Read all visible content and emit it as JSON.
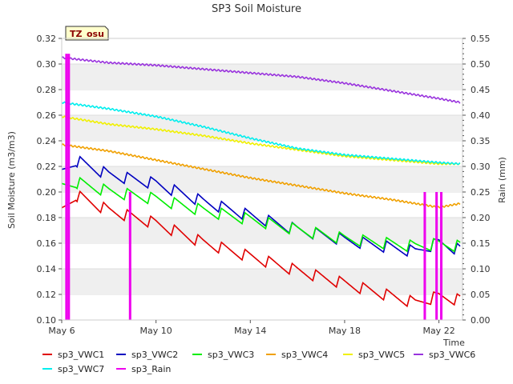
{
  "chart_data": {
    "type": "line",
    "title": "SP3 Soil Moisture",
    "badge": "TZ_osu",
    "xlabel": "Time",
    "ylabel": "Soil Moisture (m3/m3)",
    "y2label": "Rain (mm)",
    "xlim": [
      "2024-05-06",
      "2024-05-23"
    ],
    "xticks": [
      {
        "x": "2024-05-06",
        "label": "May 6"
      },
      {
        "x": "2024-05-10",
        "label": "May 10"
      },
      {
        "x": "2024-05-14",
        "label": "May 14"
      },
      {
        "x": "2024-05-18",
        "label": "May 18"
      },
      {
        "x": "2024-05-22",
        "label": "May 22"
      }
    ],
    "ylim": [
      0.1,
      0.32
    ],
    "yticks": [
      "0.10",
      "0.12",
      "0.14",
      "0.16",
      "0.18",
      "0.20",
      "0.22",
      "0.24",
      "0.26",
      "0.28",
      "0.30",
      "0.32"
    ],
    "y2lim": [
      0.0,
      0.55
    ],
    "y2ticks": [
      "0.00",
      "0.05",
      "0.10",
      "0.15",
      "0.20",
      "0.25",
      "0.30",
      "0.35",
      "0.40",
      "0.45",
      "0.50",
      "0.55"
    ],
    "grid": "horizontal bands",
    "legend_placement": "bottom",
    "series": [
      {
        "name": "sp3_VWC1",
        "color": "#e00000",
        "diurnal": true,
        "points": [
          {
            "x": "2024-05-06",
            "y": 0.185
          },
          {
            "x": "2024-05-06.6",
            "y": 0.197
          },
          {
            "x": "2024-05-08",
            "y": 0.185
          },
          {
            "x": "2024-05-10",
            "y": 0.175
          },
          {
            "x": "2024-05-12",
            "y": 0.16
          },
          {
            "x": "2024-05-14",
            "y": 0.149
          },
          {
            "x": "2024-05-16",
            "y": 0.138
          },
          {
            "x": "2024-05-18",
            "y": 0.128
          },
          {
            "x": "2024-05-20",
            "y": 0.118
          },
          {
            "x": "2024-05-21",
            "y": 0.113
          },
          {
            "x": "2024-05-22",
            "y": 0.118
          },
          {
            "x": "2024-05-22.9",
            "y": 0.115
          }
        ]
      },
      {
        "name": "sp3_VWC2",
        "color": "#0000c0",
        "diurnal": true,
        "points": [
          {
            "x": "2024-05-06",
            "y": 0.215
          },
          {
            "x": "2024-05-06.6",
            "y": 0.224
          },
          {
            "x": "2024-05-08",
            "y": 0.213
          },
          {
            "x": "2024-05-10",
            "y": 0.206
          },
          {
            "x": "2024-05-12",
            "y": 0.192
          },
          {
            "x": "2024-05-14",
            "y": 0.181
          },
          {
            "x": "2024-05-16",
            "y": 0.17
          },
          {
            "x": "2024-05-18",
            "y": 0.162
          },
          {
            "x": "2024-05-20",
            "y": 0.156
          },
          {
            "x": "2024-05-21",
            "y": 0.153
          },
          {
            "x": "2024-05-22",
            "y": 0.16
          },
          {
            "x": "2024-05-22.9",
            "y": 0.154
          }
        ]
      },
      {
        "name": "sp3_VWC3",
        "color": "#00ee00",
        "diurnal": true,
        "points": [
          {
            "x": "2024-05-06",
            "y": 0.204
          },
          {
            "x": "2024-05-06.6",
            "y": 0.207
          },
          {
            "x": "2024-05-08",
            "y": 0.2
          },
          {
            "x": "2024-05-10",
            "y": 0.194
          },
          {
            "x": "2024-05-12",
            "y": 0.185
          },
          {
            "x": "2024-05-14",
            "y": 0.178
          },
          {
            "x": "2024-05-16",
            "y": 0.17
          },
          {
            "x": "2024-05-18",
            "y": 0.163
          },
          {
            "x": "2024-05-20",
            "y": 0.159
          },
          {
            "x": "2024-05-21",
            "y": 0.157
          },
          {
            "x": "2024-05-22",
            "y": 0.159
          },
          {
            "x": "2024-05-22.9",
            "y": 0.157
          }
        ]
      },
      {
        "name": "sp3_VWC4",
        "color": "#f0a000",
        "diurnal": false,
        "points": [
          {
            "x": "2024-05-06",
            "y": 0.237
          },
          {
            "x": "2024-05-08",
            "y": 0.232
          },
          {
            "x": "2024-05-10",
            "y": 0.225
          },
          {
            "x": "2024-05-12",
            "y": 0.218
          },
          {
            "x": "2024-05-14",
            "y": 0.211
          },
          {
            "x": "2024-05-16",
            "y": 0.205
          },
          {
            "x": "2024-05-18",
            "y": 0.199
          },
          {
            "x": "2024-05-20",
            "y": 0.194
          },
          {
            "x": "2024-05-22",
            "y": 0.188
          },
          {
            "x": "2024-05-22.9",
            "y": 0.191
          }
        ]
      },
      {
        "name": "sp3_VWC5",
        "color": "#f0f000",
        "diurnal": false,
        "points": [
          {
            "x": "2024-05-06",
            "y": 0.259
          },
          {
            "x": "2024-05-08",
            "y": 0.253
          },
          {
            "x": "2024-05-10",
            "y": 0.249
          },
          {
            "x": "2024-05-12",
            "y": 0.244
          },
          {
            "x": "2024-05-14",
            "y": 0.238
          },
          {
            "x": "2024-05-16",
            "y": 0.233
          },
          {
            "x": "2024-05-18",
            "y": 0.228
          },
          {
            "x": "2024-05-20",
            "y": 0.225
          },
          {
            "x": "2024-05-22",
            "y": 0.222
          },
          {
            "x": "2024-05-22.9",
            "y": 0.222
          }
        ]
      },
      {
        "name": "sp3_VWC6",
        "color": "#9933dd",
        "diurnal": false,
        "points": [
          {
            "x": "2024-05-06",
            "y": 0.305
          },
          {
            "x": "2024-05-08",
            "y": 0.301
          },
          {
            "x": "2024-05-10",
            "y": 0.299
          },
          {
            "x": "2024-05-12",
            "y": 0.296
          },
          {
            "x": "2024-05-14",
            "y": 0.293
          },
          {
            "x": "2024-05-16",
            "y": 0.29
          },
          {
            "x": "2024-05-18",
            "y": 0.285
          },
          {
            "x": "2024-05-20",
            "y": 0.279
          },
          {
            "x": "2024-05-22",
            "y": 0.273
          },
          {
            "x": "2024-05-22.9",
            "y": 0.27
          }
        ]
      },
      {
        "name": "sp3_VWC7",
        "color": "#00eeee",
        "diurnal": false,
        "points": [
          {
            "x": "2024-05-06",
            "y": 0.27
          },
          {
            "x": "2024-05-08",
            "y": 0.265
          },
          {
            "x": "2024-05-10",
            "y": 0.259
          },
          {
            "x": "2024-05-12",
            "y": 0.251
          },
          {
            "x": "2024-05-14",
            "y": 0.242
          },
          {
            "x": "2024-05-16",
            "y": 0.234
          },
          {
            "x": "2024-05-18",
            "y": 0.229
          },
          {
            "x": "2024-05-20",
            "y": 0.226
          },
          {
            "x": "2024-05-22",
            "y": 0.223
          },
          {
            "x": "2024-05-22.9",
            "y": 0.222
          }
        ]
      }
    ],
    "rain": {
      "name": "sp3_Rain",
      "color": "#ee00ee",
      "events": [
        {
          "x": "2024-05-06.2",
          "y": 0.52
        },
        {
          "x": "2024-05-06.3",
          "y": 0.52
        },
        {
          "x": "2024-05-08.9",
          "y": 0.25
        },
        {
          "x": "2024-05-21.4",
          "y": 0.25
        },
        {
          "x": "2024-05-21.9",
          "y": 0.25
        },
        {
          "x": "2024-05-22.1",
          "y": 0.25
        }
      ]
    }
  }
}
